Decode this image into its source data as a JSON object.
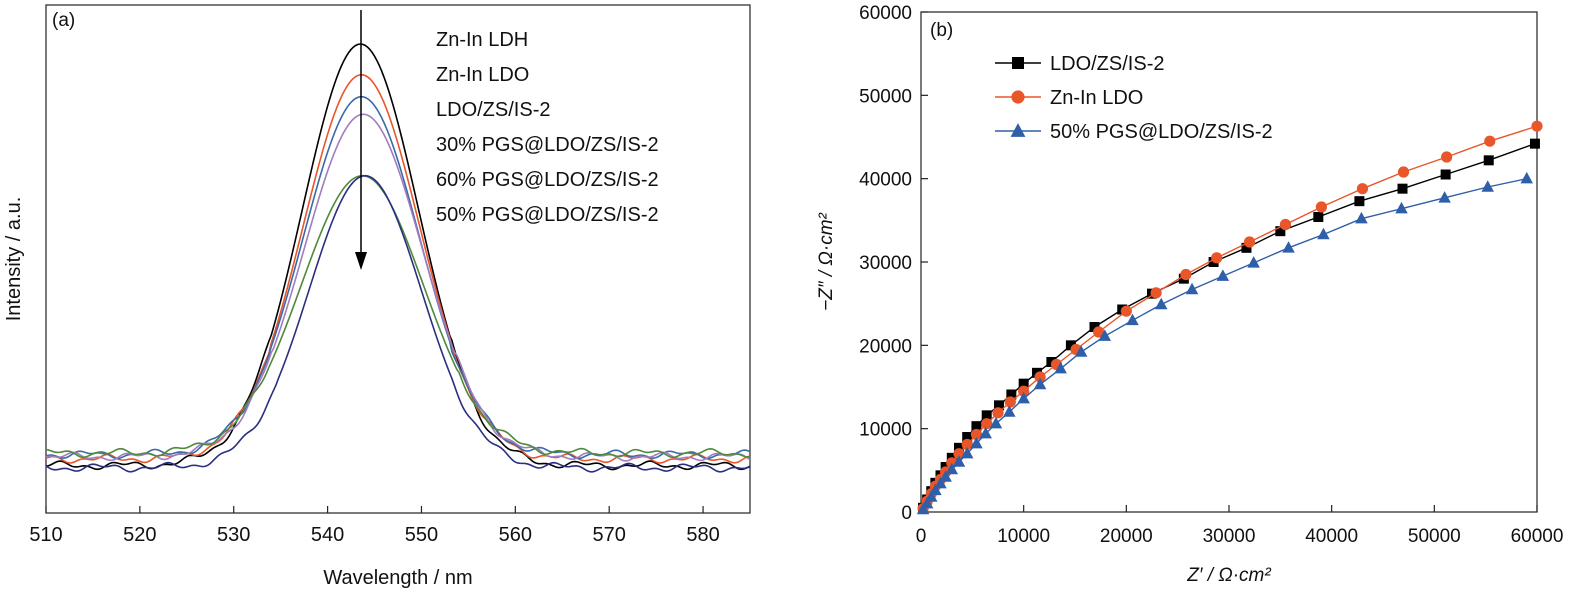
{
  "chart_data": [
    {
      "panel_label": "(a)",
      "type": "line",
      "xlabel": "Wavelength / nm",
      "ylabel": "Intensity / a.u.",
      "xlim": [
        510,
        585
      ],
      "ylim": [
        0,
        1
      ],
      "x_ticks": [
        "510",
        "520",
        "530",
        "540",
        "550",
        "560",
        "570",
        "580"
      ],
      "y_ticks": [],
      "grid": false,
      "legend_position": "top-right",
      "annotation": "downward arrow at 543 nm indicating decreasing intensity",
      "series": [
        {
          "name": "Zn-In LDH",
          "color": "#000000",
          "peak_x": 543.5,
          "peak_y": 1.0,
          "width": 6.2,
          "baseline": 0.04
        },
        {
          "name": "Zn-In LDO",
          "color": "#e8562a",
          "peak_x": 543.6,
          "peak_y": 0.93,
          "width": 6.2,
          "baseline": 0.055
        },
        {
          "name": "LDO/ZS/IS-2",
          "color": "#3a6aa8",
          "peak_x": 543.6,
          "peak_y": 0.88,
          "width": 6.2,
          "baseline": 0.065
        },
        {
          "name": "30% PGS@LDO/ZS/IS-2",
          "color": "#a07cc0",
          "peak_x": 543.8,
          "peak_y": 0.84,
          "width": 6.3,
          "baseline": 0.06
        },
        {
          "name": "60% PGS@LDO/ZS/IS-2",
          "color": "#4e8a3a",
          "peak_x": 543.7,
          "peak_y": 0.7,
          "width": 6.5,
          "baseline": 0.068
        },
        {
          "name": "50% PGS@LDO/ZS/IS-2",
          "color": "#2a2f80",
          "peak_x": 544.0,
          "peak_y": 0.7,
          "width": 6.0,
          "baseline": 0.035
        }
      ]
    },
    {
      "panel_label": "(b)",
      "type": "scatter",
      "xlabel": "Z′ / Ω·cm²",
      "ylabel": "−Z″ / Ω·cm²",
      "xlim": [
        0,
        60000
      ],
      "ylim": [
        0,
        60000
      ],
      "x_ticks": [
        "0",
        "10000",
        "20000",
        "30000",
        "40000",
        "50000",
        "60000"
      ],
      "y_ticks": [
        "0",
        "10000",
        "20000",
        "30000",
        "40000",
        "50000",
        "60000"
      ],
      "grid": false,
      "legend_position": "top-left",
      "series": [
        {
          "name": "LDO/ZS/IS-2",
          "color": "#000000",
          "marker": "square",
          "x": [
            200,
            600,
            1000,
            1400,
            1900,
            2400,
            3000,
            3700,
            4500,
            5400,
            6400,
            7600,
            8800,
            10000,
            11300,
            12700,
            14600,
            16900,
            19600,
            22500,
            25600,
            28500,
            31700,
            35000,
            38700,
            42700,
            46900,
            51100,
            55300,
            59800
          ],
          "y": [
            500,
            1500,
            2500,
            3500,
            4400,
            5400,
            6500,
            7700,
            9000,
            10300,
            11600,
            12800,
            14100,
            15400,
            16700,
            18000,
            20000,
            22200,
            24300,
            26200,
            28000,
            30000,
            31700,
            33700,
            35400,
            37300,
            38800,
            40500,
            42200,
            44200
          ]
        },
        {
          "name": "Zn-In LDO",
          "color": "#e8562a",
          "marker": "circle",
          "x": [
            200,
            600,
            1000,
            1400,
            1900,
            2400,
            3000,
            3700,
            4500,
            5400,
            6400,
            7500,
            8700,
            10000,
            11600,
            13200,
            15100,
            17300,
            20000,
            22900,
            25800,
            28800,
            32000,
            35500,
            39000,
            43000,
            47000,
            51200,
            55400,
            60000
          ],
          "y": [
            400,
            1300,
            2200,
            3100,
            3900,
            4800,
            5900,
            7000,
            8100,
            9300,
            10600,
            11900,
            13200,
            14500,
            16200,
            17700,
            19500,
            21600,
            24100,
            26300,
            28500,
            30500,
            32400,
            34500,
            36600,
            38800,
            40800,
            42600,
            44500,
            46300
          ]
        },
        {
          "name": "50% PGS@LDO/ZS/IS-2",
          "color": "#2f5fa8",
          "marker": "triangle",
          "x": [
            200,
            600,
            1000,
            1400,
            1900,
            2400,
            3000,
            3700,
            4500,
            5400,
            6300,
            7300,
            8600,
            10000,
            11600,
            13600,
            15600,
            17900,
            20600,
            23400,
            26400,
            29400,
            32400,
            35800,
            39200,
            42900,
            46800,
            51000,
            55200,
            59000
          ],
          "y": [
            300,
            1000,
            1800,
            2600,
            3400,
            4200,
            5100,
            6000,
            7000,
            8200,
            9400,
            10600,
            12000,
            13600,
            15300,
            17200,
            19200,
            21100,
            23000,
            24900,
            26700,
            28300,
            29900,
            31700,
            33300,
            35200,
            36400,
            37700,
            39000,
            40000
          ]
        }
      ]
    }
  ]
}
